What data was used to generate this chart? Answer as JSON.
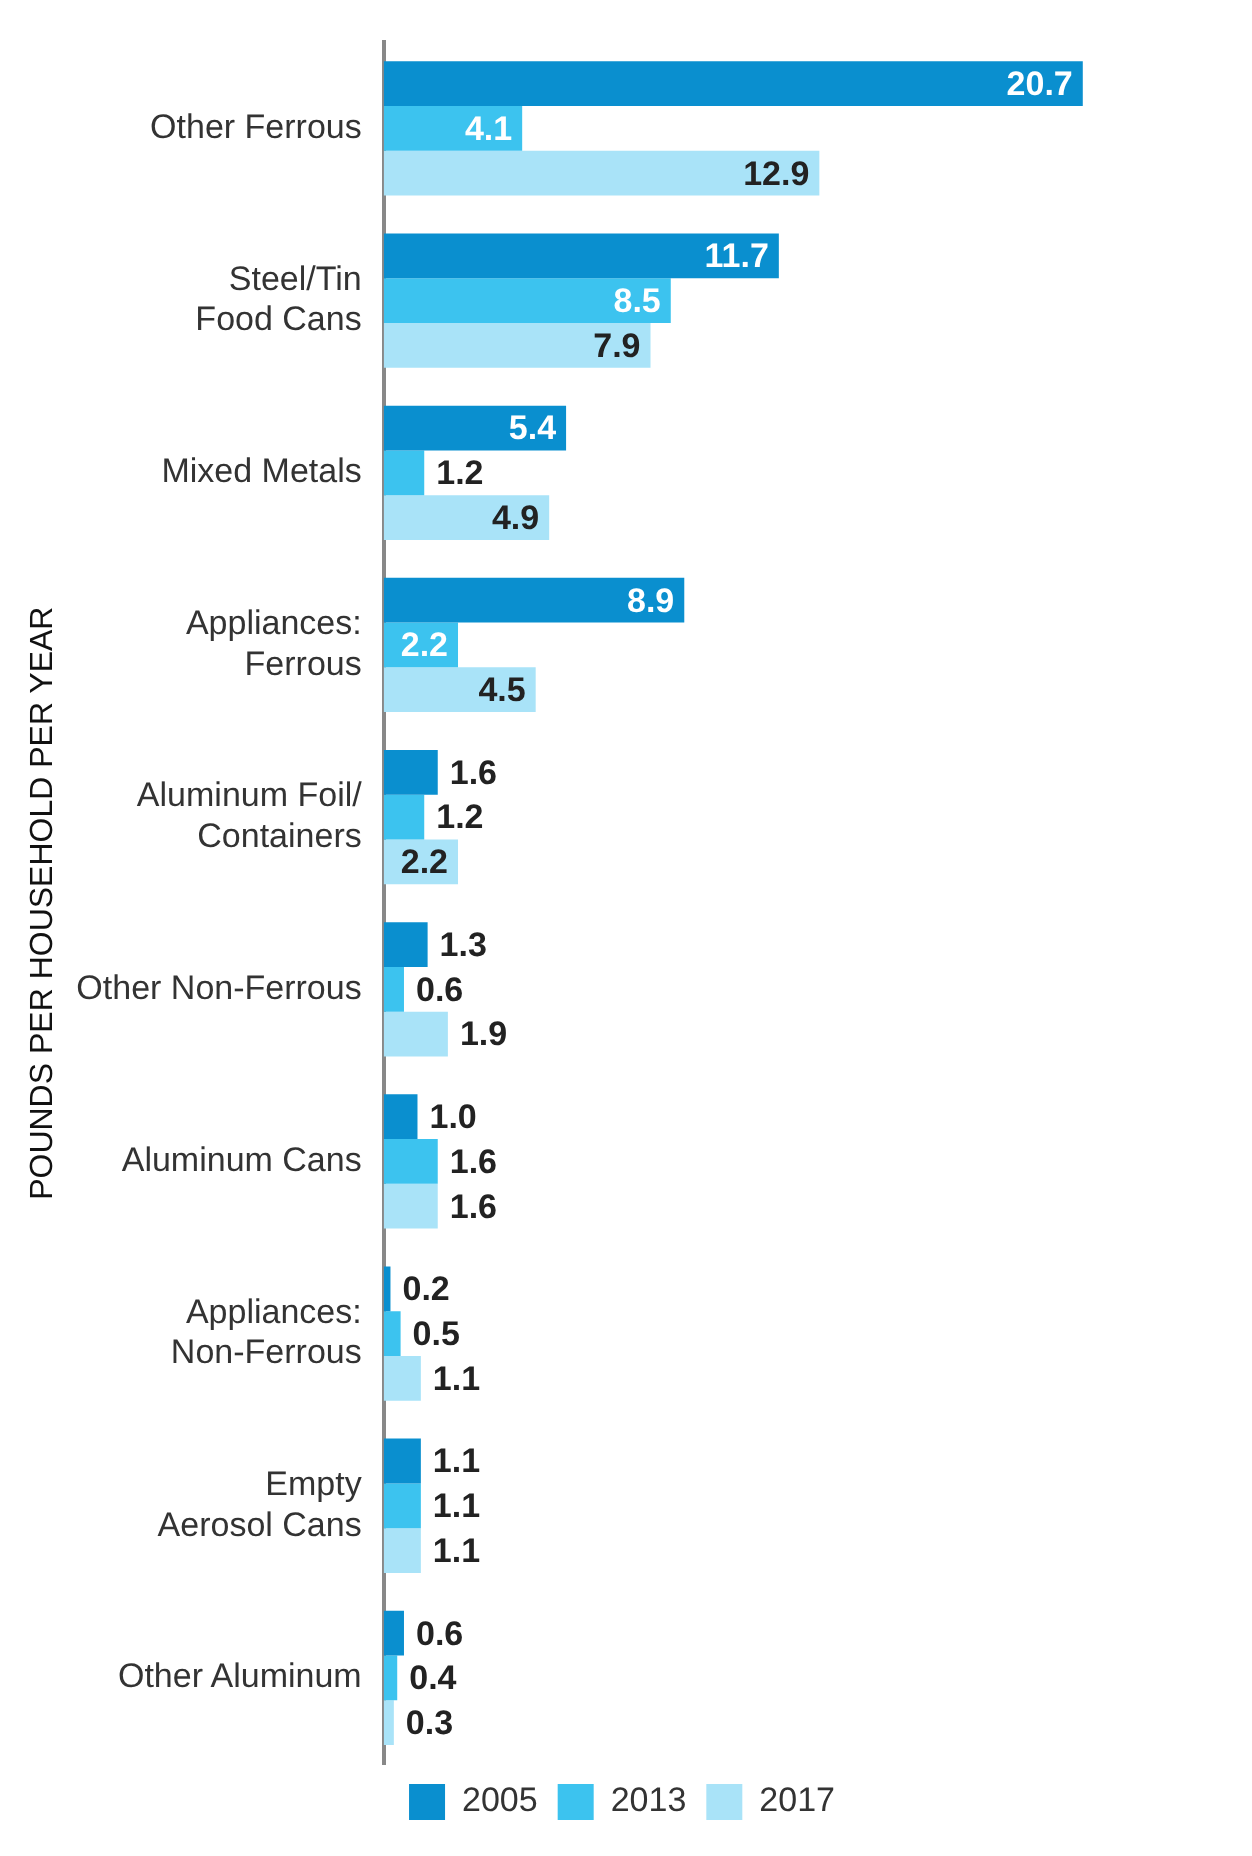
{
  "chart_data": {
    "type": "bar",
    "orientation": "horizontal",
    "ylabel": "POUNDS PER HOUSEHOLD PER YEAR",
    "categories": [
      "Other Ferrous",
      "Steel/Tin\nFood Cans",
      "Mixed Metals",
      "Appliances:\nFerrous",
      "Aluminum Foil/\nContainers",
      "Other Non-Ferrous",
      "Aluminum Cans",
      "Appliances:\nNon-Ferrous",
      "Empty\nAerosol Cans",
      "Other Aluminum"
    ],
    "series": [
      {
        "name": "2005",
        "color": "#0a8fcf",
        "values": [
          20.7,
          11.7,
          5.4,
          8.9,
          1.6,
          1.3,
          1.0,
          0.2,
          1.1,
          0.6
        ],
        "value_labels": [
          "20.7",
          "11.7",
          "5.4",
          "8.9",
          "1.6",
          "1.3",
          "1.0",
          "0.2",
          "1.1",
          "0.6"
        ]
      },
      {
        "name": "2013",
        "color": "#3cc3ef",
        "values": [
          4.1,
          8.5,
          1.2,
          2.2,
          1.2,
          0.6,
          1.6,
          0.5,
          1.1,
          0.4
        ],
        "value_labels": [
          "4.1",
          "8.5",
          "1.2",
          "2.2",
          "1.2",
          "0.6",
          "1.6",
          "0.5",
          "1.1",
          "0.4"
        ]
      },
      {
        "name": "2017",
        "color": "#a9e3f8",
        "values": [
          12.9,
          7.9,
          4.9,
          4.5,
          2.2,
          1.9,
          1.6,
          1.1,
          1.1,
          0.3
        ],
        "value_labels": [
          "12.9",
          "7.9",
          "4.9",
          "4.5",
          "2.2",
          "1.9",
          "1.6",
          "1.1",
          "1.1",
          "0.3"
        ]
      }
    ],
    "legend": "bottom",
    "grid": false,
    "tick_labels": "y"
  }
}
